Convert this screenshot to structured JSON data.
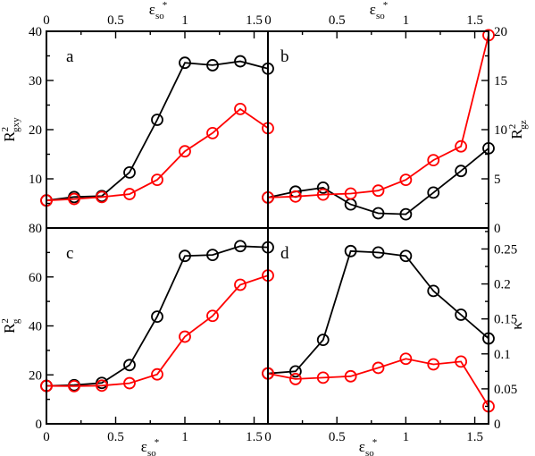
{
  "figure": {
    "top_axis_label": "εso*",
    "bottom_axis_label": "εso*"
  },
  "chart_data": [
    {
      "type": "line",
      "panel_label": "a",
      "xlabel": "εso*",
      "ylabel": "R²gxy",
      "xlim": [
        0,
        1.6
      ],
      "ylim": [
        0,
        40
      ],
      "x_ticks": [
        0,
        0.5,
        1,
        1.5
      ],
      "x_tick_labels": [
        "0",
        "0.5",
        "1",
        "1.5"
      ],
      "y_ticks": [
        0,
        10,
        20,
        30,
        40
      ],
      "y_tick_labels": [
        "0",
        "10",
        "20",
        "30",
        "40"
      ],
      "series": [
        {
          "color": "#000000",
          "x": [
            0,
            0.2,
            0.4,
            0.6,
            0.8,
            1.0,
            1.2,
            1.4,
            1.6
          ],
          "y": [
            5.6,
            6.3,
            6.5,
            11.3,
            22.0,
            33.6,
            33.1,
            33.9,
            32.4
          ]
        },
        {
          "color": "#ff0000",
          "x": [
            0,
            0.2,
            0.4,
            0.6,
            0.8,
            1.0,
            1.2,
            1.4,
            1.6
          ],
          "y": [
            5.6,
            5.9,
            6.3,
            6.9,
            9.8,
            15.6,
            19.3,
            24.2,
            20.3
          ]
        }
      ]
    },
    {
      "type": "line",
      "panel_label": "b",
      "xlabel": "εso*",
      "ylabel": "R²gz",
      "xlim": [
        0,
        1.6
      ],
      "ylim": [
        0,
        20
      ],
      "x_ticks": [
        0,
        0.5,
        1,
        1.5
      ],
      "x_tick_labels": [
        "0",
        "0.5",
        "1",
        "1.5"
      ],
      "y_ticks": [
        0,
        5,
        10,
        15,
        20
      ],
      "y_tick_labels": [
        "0",
        "5",
        "10",
        "15",
        "20"
      ],
      "series": [
        {
          "color": "#000000",
          "x": [
            0,
            0.2,
            0.4,
            0.6,
            0.8,
            1.0,
            1.2,
            1.4,
            1.6
          ],
          "y": [
            3.1,
            3.7,
            4.1,
            2.4,
            1.5,
            1.4,
            3.6,
            5.8,
            8.1
          ]
        },
        {
          "color": "#ff0000",
          "x": [
            0,
            0.2,
            0.4,
            0.6,
            0.8,
            1.0,
            1.2,
            1.4,
            1.6
          ],
          "y": [
            3.1,
            3.2,
            3.4,
            3.5,
            3.8,
            4.9,
            6.9,
            8.3,
            19.6
          ]
        }
      ]
    },
    {
      "type": "line",
      "panel_label": "c",
      "xlabel": "εso*",
      "ylabel": "R²g",
      "xlim": [
        0,
        1.6
      ],
      "ylim": [
        0,
        80
      ],
      "x_ticks": [
        0,
        0.5,
        1,
        1.5
      ],
      "x_tick_labels": [
        "0",
        "0.5",
        "1",
        "1.5"
      ],
      "y_ticks": [
        0,
        20,
        40,
        60,
        80
      ],
      "y_tick_labels": [
        "0",
        "20",
        "40",
        "60",
        "80"
      ],
      "series": [
        {
          "color": "#000000",
          "x": [
            0,
            0.2,
            0.4,
            0.6,
            0.8,
            1.0,
            1.2,
            1.4,
            1.6
          ],
          "y": [
            15.5,
            15.8,
            16.7,
            24.0,
            43.8,
            68.6,
            69.0,
            72.6,
            72.1
          ]
        },
        {
          "color": "#ff0000",
          "x": [
            0,
            0.2,
            0.4,
            0.6,
            0.8,
            1.0,
            1.2,
            1.4,
            1.6
          ],
          "y": [
            15.5,
            15.4,
            15.6,
            16.6,
            20.2,
            35.6,
            44.1,
            56.8,
            60.6
          ]
        }
      ]
    },
    {
      "type": "line",
      "panel_label": "d",
      "xlabel": "εso*",
      "ylabel": "κ",
      "xlim": [
        0,
        1.6
      ],
      "ylim": [
        0,
        0.28
      ],
      "x_ticks": [
        0,
        0.5,
        1,
        1.5
      ],
      "x_tick_labels": [
        "0",
        "0.5",
        "1",
        "1.5"
      ],
      "y_ticks": [
        0,
        0.05,
        0.1,
        0.15,
        0.2,
        0.25
      ],
      "y_tick_labels": [
        "0",
        "0.05",
        "0.1",
        "0.15",
        "0.2",
        "0.25"
      ],
      "series": [
        {
          "color": "#000000",
          "x": [
            0,
            0.2,
            0.4,
            0.6,
            0.8,
            1.0,
            1.2,
            1.4,
            1.6
          ],
          "y": [
            0.072,
            0.075,
            0.12,
            0.247,
            0.245,
            0.24,
            0.19,
            0.156,
            0.122
          ]
        },
        {
          "color": "#ff0000",
          "x": [
            0,
            0.2,
            0.4,
            0.6,
            0.8,
            1.0,
            1.2,
            1.4,
            1.6
          ],
          "y": [
            0.072,
            0.064,
            0.066,
            0.068,
            0.08,
            0.093,
            0.085,
            0.089,
            0.025
          ]
        }
      ]
    }
  ]
}
